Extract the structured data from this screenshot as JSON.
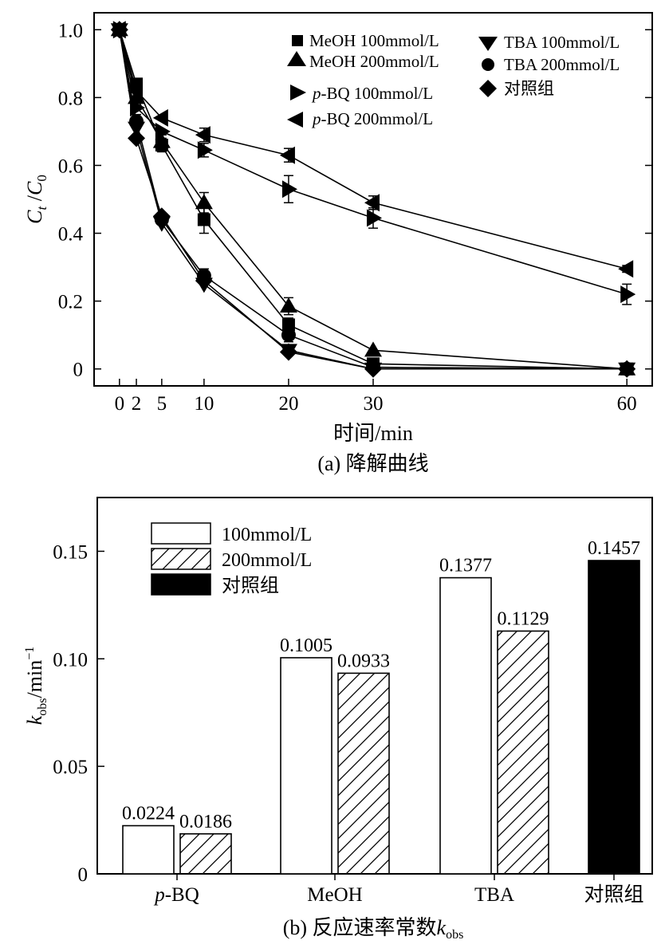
{
  "chart_data": [
    {
      "type": "line",
      "x": [
        0,
        2,
        5,
        10,
        20,
        30,
        60
      ],
      "xlim": [
        -3,
        63
      ],
      "ylim": [
        -0.05,
        1.05
      ],
      "xticks": [
        "0",
        "2",
        "5",
        "10",
        "20",
        "30",
        "60"
      ],
      "yticks": [
        "0",
        "0.2",
        "0.4",
        "0.6",
        "0.8",
        "1.0"
      ],
      "ytick_values": [
        0,
        0.2,
        0.4,
        0.6,
        0.8,
        1.0
      ],
      "xlabel": "时间/min",
      "ylabel_main": "C",
      "ylabel_sub1": "t",
      "ylabel_sep": " /",
      "ylabel_main2": "C",
      "ylabel_sub2": "0",
      "caption": "(a) 降解曲线",
      "series": [
        {
          "name": "MeOH 100mmol/L",
          "marker": "square",
          "values": [
            1.0,
            0.84,
            0.66,
            0.44,
            0.13,
            0.015,
            0.0
          ],
          "errors": [
            0,
            0,
            0.02,
            0.04,
            0.02,
            0,
            0
          ]
        },
        {
          "name": "MeOH 200mmol/L",
          "marker": "triangle-up",
          "values": [
            1.0,
            0.8,
            0.67,
            0.49,
            0.185,
            0.055,
            0.0
          ],
          "errors": [
            0,
            0,
            0.02,
            0.03,
            0.025,
            0,
            0
          ]
        },
        {
          "name": "p-BQ 100mmol/L",
          "prefix": "p",
          "suffix": "-BQ 100mmol/L",
          "marker": "triangle-right",
          "values": [
            1.0,
            0.77,
            0.7,
            0.645,
            0.53,
            0.445,
            0.22
          ],
          "errors": [
            0,
            0,
            0,
            0.02,
            0.04,
            0.03,
            0.03
          ]
        },
        {
          "name": "p-BQ 200mmol/L",
          "prefix": "p",
          "suffix": "-BQ 200mmol/L",
          "marker": "triangle-left",
          "values": [
            1.0,
            0.82,
            0.74,
            0.69,
            0.63,
            0.49,
            0.295
          ],
          "errors": [
            0,
            0,
            0,
            0.02,
            0.02,
            0.02,
            0.01
          ]
        },
        {
          "name": "TBA 100mmol/L",
          "marker": "triangle-down",
          "values": [
            1.0,
            0.71,
            0.43,
            0.25,
            0.055,
            0.0,
            0.0
          ],
          "errors": [
            0,
            0,
            0,
            0,
            0,
            0,
            0
          ]
        },
        {
          "name": "TBA 200mmol/L",
          "marker": "circle",
          "values": [
            1.0,
            0.73,
            0.44,
            0.275,
            0.1,
            0.005,
            0.0
          ],
          "errors": [
            0,
            0.02,
            0,
            0.02,
            0.02,
            0,
            0
          ]
        },
        {
          "name": "对照组",
          "marker": "diamond",
          "values": [
            1.0,
            0.68,
            0.45,
            0.26,
            0.05,
            0.0,
            0.0
          ],
          "errors": [
            0,
            0,
            0,
            0,
            0,
            0,
            0
          ]
        }
      ]
    },
    {
      "type": "bar",
      "categories": [
        "p-BQ",
        "MeOH",
        "TBA",
        "对照组"
      ],
      "category_labels": [
        {
          "italic": "p",
          "rest": "-BQ"
        },
        {
          "italic": "",
          "rest": "MeOH"
        },
        {
          "italic": "",
          "rest": "TBA"
        },
        {
          "italic": "",
          "rest": "对照组"
        }
      ],
      "ylim": [
        0,
        0.175
      ],
      "yticks": [
        "0",
        "0.05",
        "0.10",
        "0.15"
      ],
      "ytick_values": [
        0,
        0.05,
        0.1,
        0.15
      ],
      "ylabel_main": "k",
      "ylabel_sub": "obs",
      "ylabel_rest": "/min",
      "ylabel_sup": "−1",
      "caption_main": "(b) 反应速率常数",
      "caption_k": "k",
      "caption_sub": "obs",
      "legend": [
        {
          "name": "100mmol/L",
          "style": "open"
        },
        {
          "name": "200mmol/L",
          "style": "hatched"
        },
        {
          "name": "对照组",
          "style": "filled"
        }
      ],
      "bars": [
        {
          "category": "p-BQ",
          "style": "open",
          "value": 0.0224,
          "label": "0.0224"
        },
        {
          "category": "p-BQ",
          "style": "hatched",
          "value": 0.0186,
          "label": "0.0186"
        },
        {
          "category": "MeOH",
          "style": "open",
          "value": 0.1005,
          "label": "0.1005"
        },
        {
          "category": "MeOH",
          "style": "hatched",
          "value": 0.0933,
          "label": "0.0933"
        },
        {
          "category": "TBA",
          "style": "open",
          "value": 0.1377,
          "label": "0.1377"
        },
        {
          "category": "TBA",
          "style": "hatched",
          "value": 0.1129,
          "label": "0.1129"
        },
        {
          "category": "对照组",
          "style": "filled",
          "value": 0.1457,
          "label": "0.1457"
        }
      ]
    }
  ]
}
